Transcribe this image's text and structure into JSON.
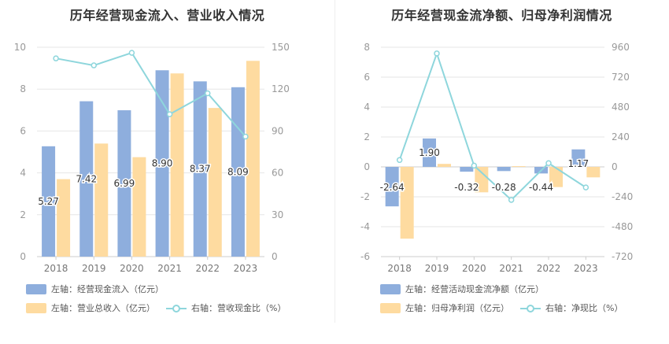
{
  "charts": {
    "left": {
      "title": "历年经营现金流入、营业收入情况"
    },
    "right": {
      "title": "历年经营现金流净额、归母净利润情况"
    }
  },
  "legend": {
    "left": {
      "bar1": "左轴：经营现金流入（亿元）",
      "bar2": "左轴：营业总收入（亿元）",
      "line": "右轴：营收现金比（%）"
    },
    "right": {
      "bar1": "左轴：经营活动现金流净额（亿元）",
      "bar2": "左轴：归母净利润（亿元）",
      "line": "右轴：净现比（%）"
    }
  },
  "colors": {
    "bar1": "#8eaedd",
    "bar2": "#fedba0",
    "line": "#8ed6dc",
    "grid": "#e6e6e6",
    "axisText": "#999999"
  },
  "chart_data": [
    {
      "type": "bar",
      "title": "历年经营现金流入、营业收入情况",
      "categories": [
        "2018",
        "2019",
        "2020",
        "2021",
        "2022",
        "2023"
      ],
      "series": [
        {
          "name": "左轴：经营现金流入（亿元）",
          "axis": "left",
          "type": "bar",
          "values": [
            5.27,
            7.42,
            6.99,
            8.9,
            8.37,
            8.09
          ],
          "labels": [
            "5.27",
            "7.42",
            "6.99",
            "8.90",
            "8.37",
            "8.09"
          ]
        },
        {
          "name": "左轴：营业总收入（亿元）",
          "axis": "left",
          "type": "bar",
          "values": [
            3.7,
            5.4,
            4.75,
            8.75,
            7.1,
            9.35
          ]
        },
        {
          "name": "右轴：营收现金比（%）",
          "axis": "right",
          "type": "line",
          "values": [
            142,
            137,
            146,
            102,
            117,
            86
          ]
        }
      ],
      "left_axis": {
        "min": 0,
        "max": 10,
        "ticks": [
          "0",
          "2",
          "4",
          "6",
          "8",
          "10"
        ]
      },
      "right_axis": {
        "min": 0,
        "max": 150,
        "ticks": [
          "0",
          "30",
          "60",
          "90",
          "120",
          "150"
        ]
      }
    },
    {
      "type": "bar",
      "title": "历年经营现金流净额、归母净利润情况",
      "categories": [
        "2018",
        "2019",
        "2020",
        "2021",
        "2022",
        "2023"
      ],
      "series": [
        {
          "name": "左轴：经营活动现金流净额（亿元）",
          "axis": "left",
          "type": "bar",
          "values": [
            -2.64,
            1.9,
            -0.32,
            -0.28,
            -0.44,
            1.17
          ],
          "labels": [
            "-2.64",
            "1.90",
            "-0.32",
            "-0.28",
            "-0.44",
            "1.17"
          ]
        },
        {
          "name": "左轴：归母净利润（亿元）",
          "axis": "left",
          "type": "bar",
          "values": [
            -4.8,
            0.2,
            -1.7,
            0.05,
            -1.35,
            -0.7
          ]
        },
        {
          "name": "右轴：净现比（%）",
          "axis": "right",
          "type": "line",
          "values": [
            55,
            910,
            10,
            -265,
            30,
            -165
          ]
        }
      ],
      "left_axis": {
        "min": -6,
        "max": 8,
        "ticks": [
          "-6",
          "-4",
          "-2",
          "0",
          "2",
          "4",
          "6",
          "8"
        ]
      },
      "right_axis": {
        "min": -720,
        "max": 960,
        "ticks": [
          "-720",
          "-480",
          "-240",
          "0",
          "240",
          "480",
          "720",
          "960"
        ]
      }
    }
  ]
}
